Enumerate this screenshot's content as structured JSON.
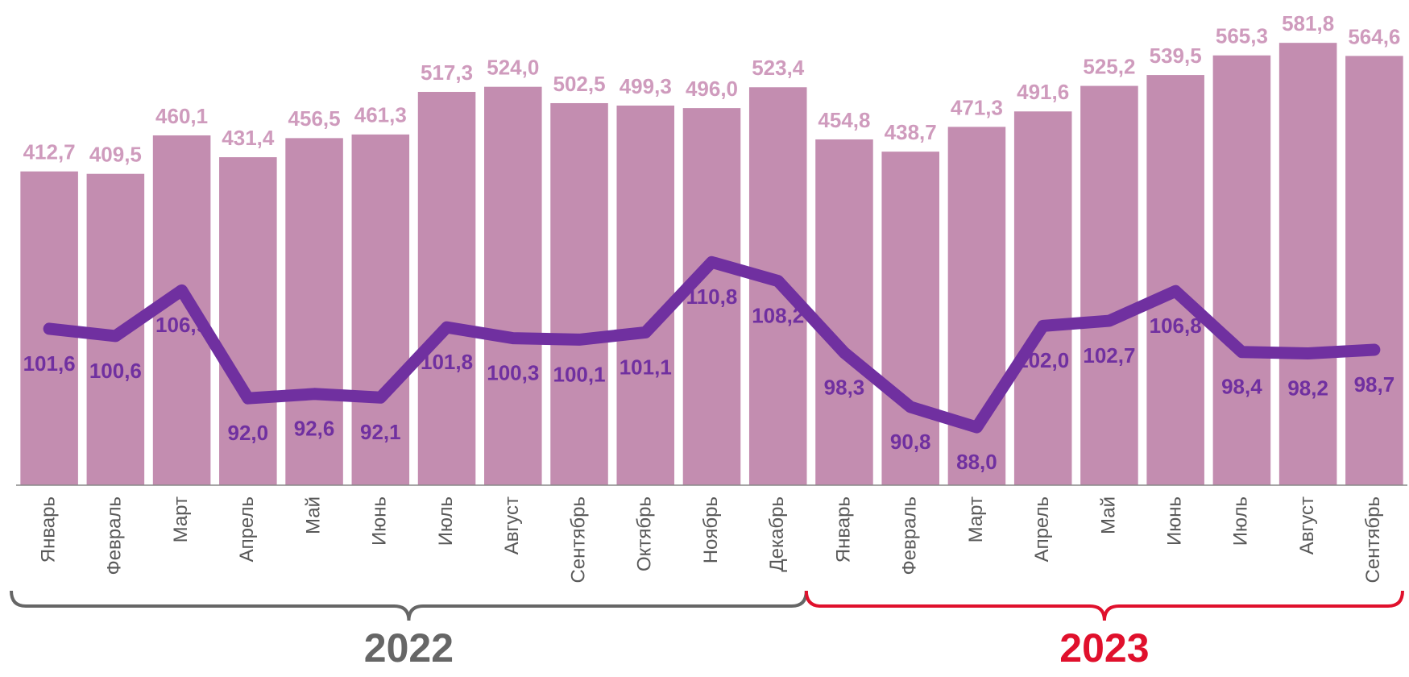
{
  "chart_data": {
    "type": "bar",
    "categories": [
      "Январь",
      "Февраль",
      "Март",
      "Апрель",
      "Май",
      "Июнь",
      "Июль",
      "Август",
      "Сентябрь",
      "Октябрь",
      "Ноябрь",
      "Декабрь",
      "Январь",
      "Февраль",
      "Март",
      "Апрель",
      "Май",
      "Июнь",
      "Июль",
      "Август",
      "Сентябрь"
    ],
    "series": [
      {
        "type": "bar",
        "color": "#c38db0",
        "label_color": "#cf9bbd",
        "values": [
          412.7,
          409.5,
          460.1,
          431.4,
          456.5,
          461.3,
          517.3,
          524.0,
          502.5,
          499.3,
          496.0,
          523.4,
          454.8,
          438.7,
          471.3,
          491.6,
          525.2,
          539.5,
          565.3,
          581.8,
          564.6
        ],
        "value_labels": [
          "412,7",
          "409,5",
          "460,1",
          "431,4",
          "456,5",
          "461,3",
          "517,3",
          "524,0",
          "502,5",
          "499,3",
          "496,0",
          "523,4",
          "454,8",
          "438,7",
          "471,3",
          "491,6",
          "525,2",
          "539,5",
          "565,3",
          "581,8",
          "564,6"
        ]
      },
      {
        "type": "line",
        "axis": "y2",
        "color": "#7030a0",
        "label_color": "#7030a0",
        "values": [
          101.6,
          100.6,
          106.9,
          92.0,
          92.6,
          92.1,
          101.8,
          100.3,
          100.1,
          101.1,
          110.8,
          108.2,
          98.3,
          90.8,
          88.0,
          102.0,
          102.7,
          106.8,
          98.4,
          98.2,
          98.7
        ],
        "value_labels": [
          "101,6",
          "100,6",
          "106,9",
          "92,0",
          "92,6",
          "92,1",
          "101,8",
          "100,3",
          "100,1",
          "101,1",
          "110,8",
          "108,2",
          "98,3",
          "90,8",
          "88,0",
          "102,0",
          "102,7",
          "106,8",
          "98,4",
          "98,2",
          "98,7"
        ]
      }
    ],
    "ylim": [
      0,
      600
    ],
    "y2lim": [
      80,
      143
    ],
    "groups": [
      {
        "label": "2022",
        "color": "#666666",
        "start": 0,
        "end": 11
      },
      {
        "label": "2023",
        "color": "#e0102c",
        "start": 12,
        "end": 20
      }
    ]
  }
}
